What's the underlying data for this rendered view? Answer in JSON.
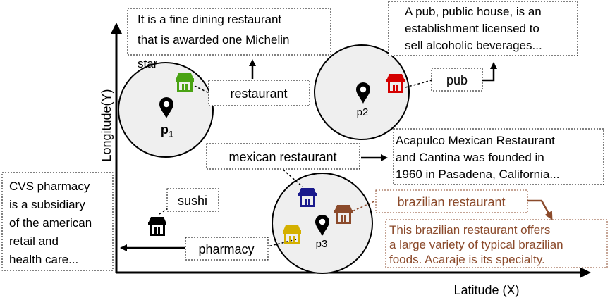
{
  "axes": {
    "y_label": "Longitude(Y)",
    "x_label": "Latitude (X)"
  },
  "points": [
    {
      "id": "p1",
      "label": "p",
      "subscript": "1"
    },
    {
      "id": "p2",
      "label": "p2"
    },
    {
      "id": "p3",
      "label": "p3"
    }
  ],
  "keywords": {
    "restaurant": "restaurant",
    "pub": "pub",
    "mexican": "mexican restaurant",
    "sushi": "sushi",
    "pharmacy": "pharmacy",
    "brazilian": "brazilian restaurant"
  },
  "descriptions": {
    "restaurant": [
      "It is a fine dining restaurant",
      "that is awarded one Michelin",
      "star"
    ],
    "pub": [
      "A pub, public house, is an",
      "establishment licensed to",
      "sell alcoholic beverages..."
    ],
    "mexican": [
      "Acapulco Mexican Restaurant",
      "and Cantina was founded in",
      "1960 in Pasadena, California..."
    ],
    "pharmacy": [
      "CVS pharmacy",
      "is a subsidiary",
      "of the american",
      "retail and",
      "health care..."
    ],
    "brazilian": [
      "This brazilian restaurant offers",
      "a large variety of typical brazilian",
      "foods. Acaraje is its specialty."
    ]
  },
  "colors": {
    "restaurant_icon": "#4aa314",
    "pub_icon": "#d40000",
    "mexican_icon": "#1a1a8c",
    "sushi_icon": "#000000",
    "pharmacy_icon": "#d4b000",
    "brazilian_icon": "#8b4a2b",
    "circle_fill": "#efefef"
  },
  "icons": {
    "shop": "shop-icon",
    "pin": "location-pin-icon"
  }
}
